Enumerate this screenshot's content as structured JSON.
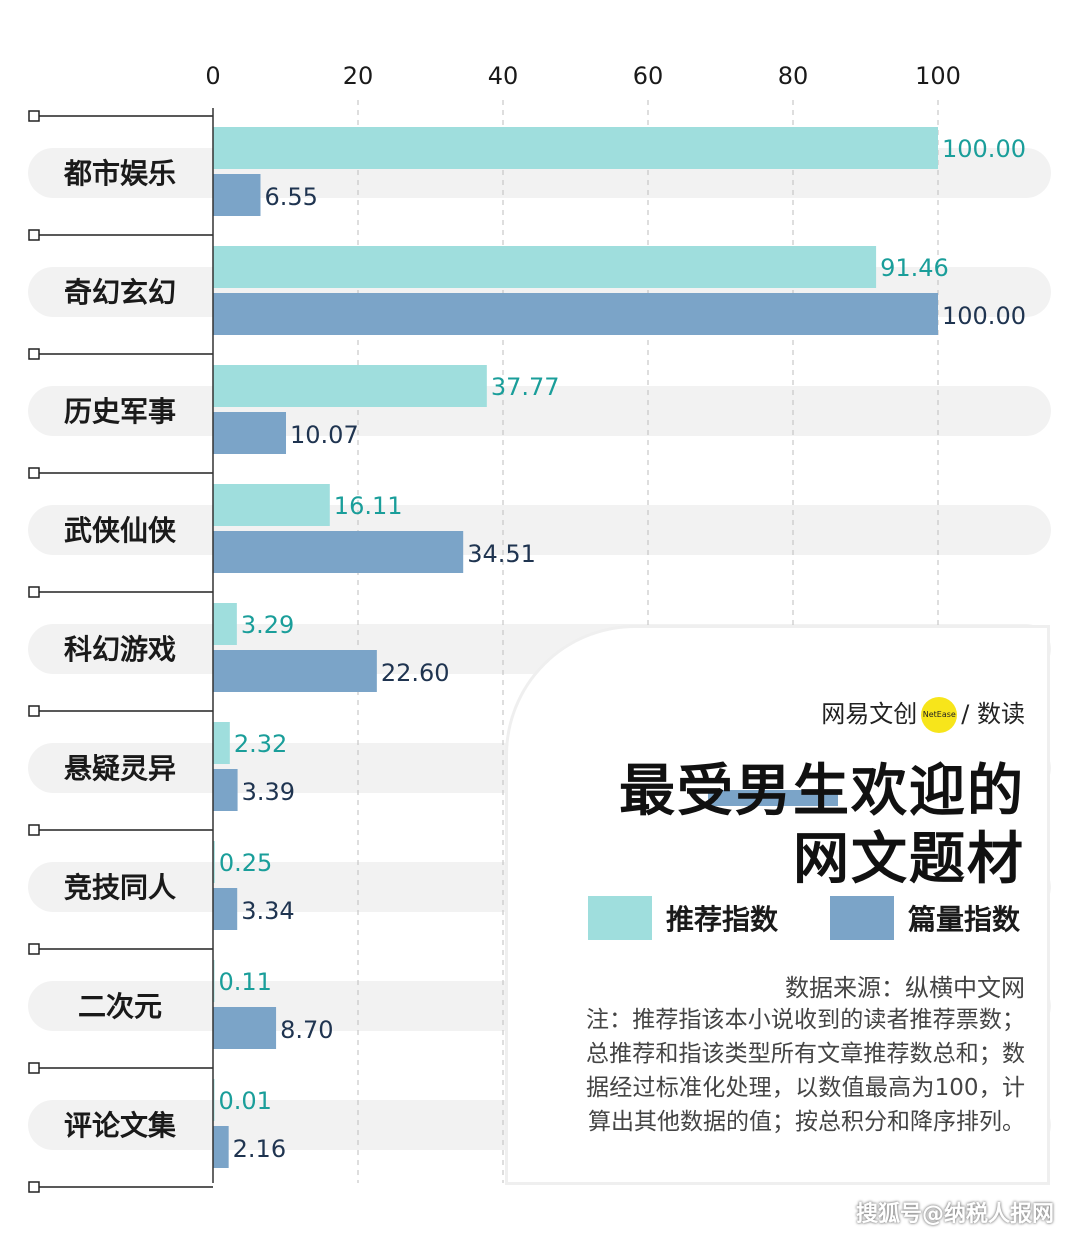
{
  "chart_data": {
    "type": "bar",
    "orientation": "horizontal",
    "categories": [
      "都市娱乐",
      "奇幻玄幻",
      "历史军事",
      "武侠仙侠",
      "科幻游戏",
      "悬疑灵异",
      "竞技同人",
      "二次元",
      "评论文集"
    ],
    "series": [
      {
        "name": "推荐指数",
        "color": "#9fdedd",
        "values": [
          100.0,
          91.46,
          37.77,
          16.11,
          3.29,
          2.32,
          0.25,
          0.11,
          0.01
        ],
        "labels": [
          "100.00",
          "91.46",
          "37.77",
          "16.11",
          "3.29",
          "2.32",
          "0.25",
          "0.11",
          "0.01"
        ]
      },
      {
        "name": "篇量指数",
        "color": "#7ba4c8",
        "values": [
          6.55,
          100.0,
          10.07,
          34.51,
          22.6,
          3.39,
          3.34,
          8.7,
          2.16
        ],
        "labels": [
          "6.55",
          "100.00",
          "10.07",
          "34.51",
          "22.60",
          "3.39",
          "3.34",
          "8.70",
          "2.16"
        ]
      }
    ],
    "xlim": [
      0,
      100
    ],
    "xticks": [
      "0",
      "20",
      "40",
      "60",
      "80",
      "100"
    ],
    "title": "最受男生欢迎的网文题材",
    "legend_position": "bottom-right",
    "grid": "dashed vertical"
  },
  "card": {
    "brand_left": "网易文创",
    "brand_dot": "NetEase",
    "brand_right": "/ 数读",
    "title_line1": "最受男生欢迎的",
    "title_line2": "网文题材",
    "legend_rec": "推荐指数",
    "legend_vol": "篇量指数",
    "source": "数据来源：纵横中文网",
    "note": "注：推荐指该本小说收到的读者推荐票数；总推荐和指该类型所有文章推荐数总和；数据经过标准化处理，以数值最高为100，计算出其他数据的值；按总积分和降序排列。"
  },
  "colors": {
    "recommend": "#9fdedd",
    "volume": "#7ba4c8",
    "pill": "#f2f2f2",
    "rec_text": "#1a9e9a",
    "vol_text": "#1f3450"
  },
  "watermark": "搜狐号@纳税人报网"
}
